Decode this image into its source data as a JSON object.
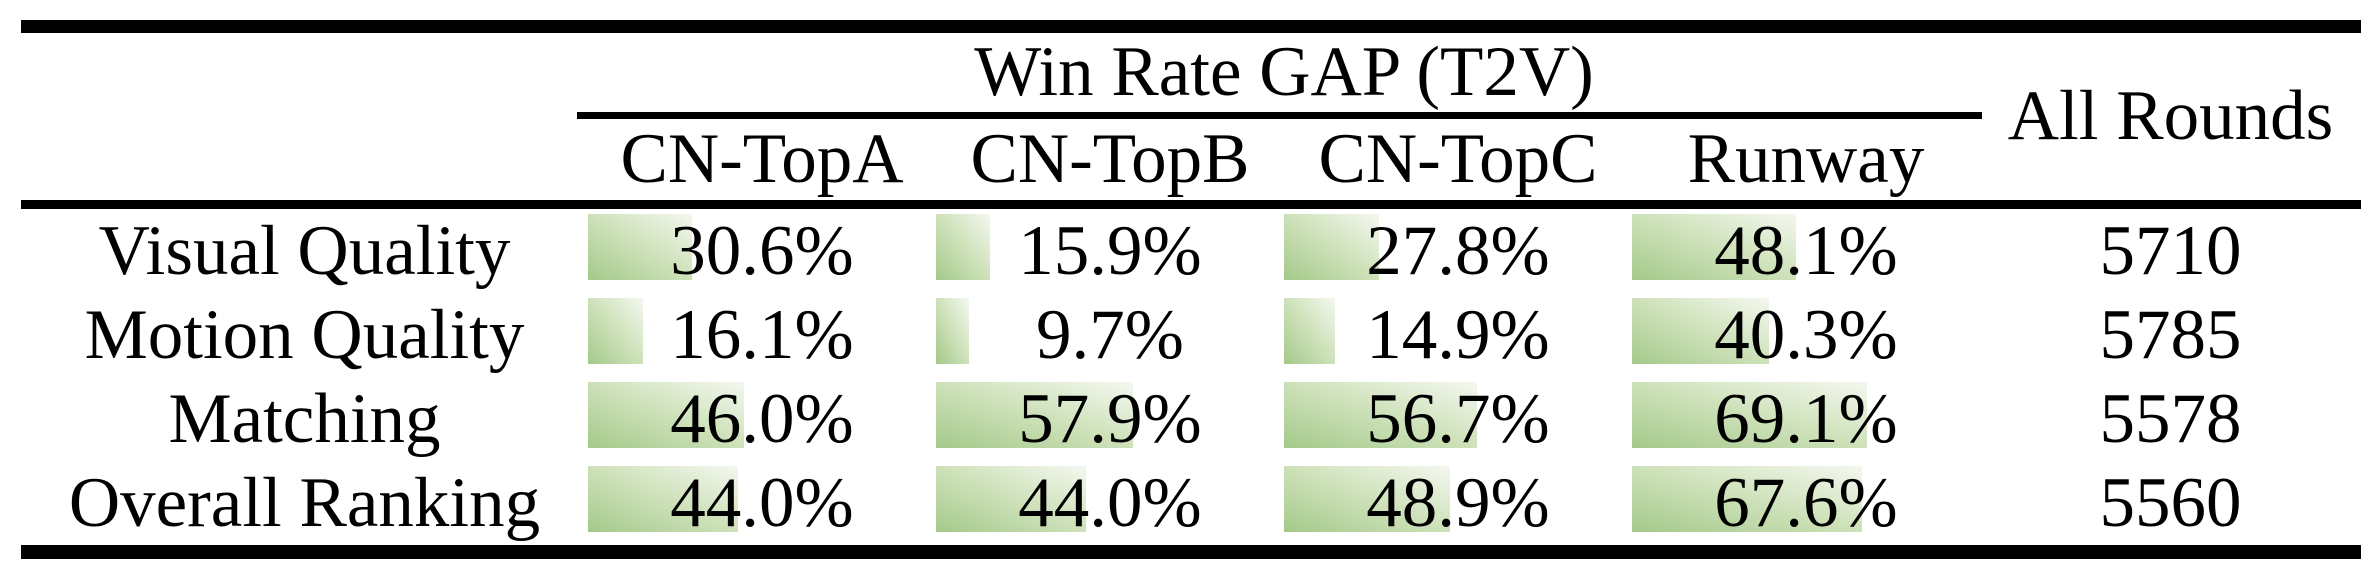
{
  "figure": {
    "kind": "paper-results-table",
    "group_header": "Win Rate GAP (T2V)",
    "all_rounds_header": "All Rounds"
  },
  "colors": {
    "bar_gradient_start": "#a4c98a",
    "bar_gradient_mid": "#cfe2bb",
    "bar_gradient_end": "#f4f8f0",
    "rule_color": "#000000",
    "text_color": "#000000",
    "background": "#ffffff"
  },
  "chart_data": {
    "type": "table",
    "title": "Win Rate GAP (T2V)",
    "group_columns": [
      "CN-TopA",
      "CN-TopB",
      "CN-TopC",
      "Runway"
    ],
    "extra_column": "All Rounds",
    "row_header_label": "",
    "value_unit": "percent",
    "bar_axis_range": [
      0,
      100
    ],
    "rows": [
      {
        "label": "Visual Quality",
        "win_rate_gap_pct": [
          30.6,
          15.9,
          27.8,
          48.1
        ],
        "all_rounds": 5710
      },
      {
        "label": "Motion Quality",
        "win_rate_gap_pct": [
          16.1,
          9.7,
          14.9,
          40.3
        ],
        "all_rounds": 5785
      },
      {
        "label": "Matching",
        "win_rate_gap_pct": [
          46.0,
          57.9,
          56.7,
          69.1
        ],
        "all_rounds": 5578
      },
      {
        "label": "Overall Ranking",
        "win_rate_gap_pct": [
          44.0,
          44.0,
          48.9,
          67.6
        ],
        "all_rounds": 5560
      }
    ]
  }
}
